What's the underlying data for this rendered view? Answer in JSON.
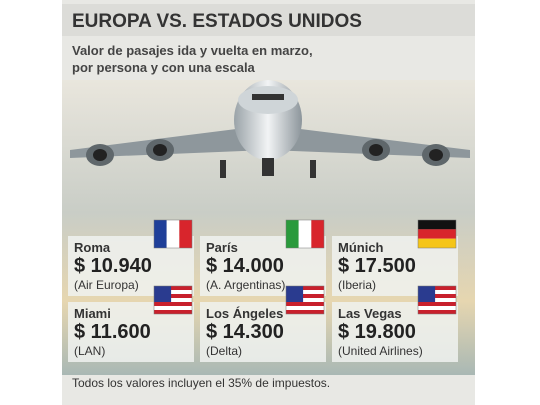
{
  "header": {
    "title": "EUROPA VS. ESTADOS UNIDOS",
    "subtitle": [
      "Valor de pasajes ida y vuelta en marzo,",
      "por persona y con una escala"
    ]
  },
  "destinations": [
    {
      "city": "Roma",
      "price": "$ 10.940",
      "airline": "(Air Europa)"
    },
    {
      "city": "París",
      "price": "$ 14.000",
      "airline": "(A. Argentinas)"
    },
    {
      "city": "Múnich",
      "price": "$ 17.500",
      "airline": "(Iberia)"
    },
    {
      "city": "Miami",
      "price": "$ 11.600",
      "airline": "(LAN)"
    },
    {
      "city": "Los Ángeles",
      "price": "$ 14.300",
      "airline": "(Delta)"
    },
    {
      "city": "Las Vegas",
      "price": "$ 19.800",
      "airline": "(United Airlines)"
    }
  ],
  "footer": "Todos los valores incluyen el 35% de impuestos."
}
